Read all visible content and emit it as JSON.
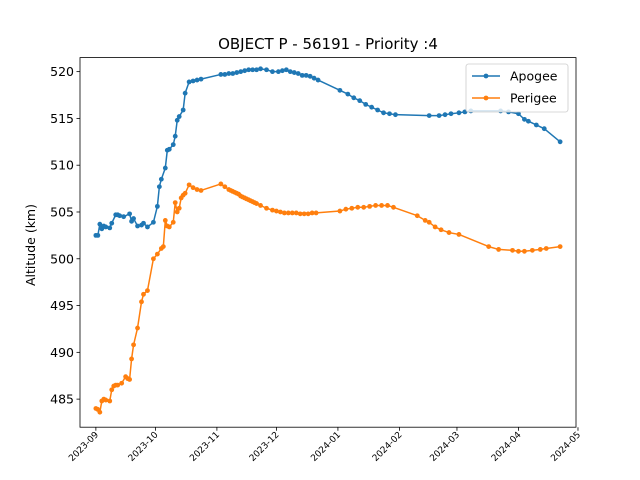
{
  "chart_data": {
    "type": "line",
    "title": "OBJECT P - 56191 - Priority :4",
    "xlabel": "",
    "ylabel": "Altitude (km)",
    "xlim": [
      "2023-08-24",
      "2024-04-30"
    ],
    "ylim": [
      482.0,
      521.5
    ],
    "x_ticks": [
      "2023-09",
      "2023-10",
      "2023-11",
      "2023-12",
      "2024-01",
      "2024-02",
      "2024-03",
      "2024-04",
      "2024-05"
    ],
    "y_ticks": [
      485,
      490,
      495,
      500,
      505,
      510,
      515,
      520
    ],
    "legend_position": "top-right",
    "grid": false,
    "series": [
      {
        "name": "Apogee",
        "color": "#1f77b4",
        "marker": "circle",
        "points": [
          [
            "2023-09-01",
            502.5
          ],
          [
            "2023-09-02",
            502.5
          ],
          [
            "2023-09-03",
            503.7
          ],
          [
            "2023-09-04",
            503.2
          ],
          [
            "2023-09-05",
            503.5
          ],
          [
            "2023-09-06",
            503.4
          ],
          [
            "2023-09-08",
            503.3
          ],
          [
            "2023-09-09",
            503.8
          ],
          [
            "2023-09-11",
            504.7
          ],
          [
            "2023-09-12",
            504.7
          ],
          [
            "2023-09-13",
            504.6
          ],
          [
            "2023-09-15",
            504.5
          ],
          [
            "2023-09-18",
            504.8
          ],
          [
            "2023-09-19",
            504.0
          ],
          [
            "2023-09-20",
            504.3
          ],
          [
            "2023-09-22",
            503.5
          ],
          [
            "2023-09-24",
            503.6
          ],
          [
            "2023-09-25",
            503.8
          ],
          [
            "2023-09-27",
            503.4
          ],
          [
            "2023-09-30",
            503.9
          ],
          [
            "2023-10-02",
            505.6
          ],
          [
            "2023-10-03",
            507.7
          ],
          [
            "2023-10-04",
            508.5
          ],
          [
            "2023-10-06",
            509.7
          ],
          [
            "2023-10-07",
            511.6
          ],
          [
            "2023-10-08",
            511.7
          ],
          [
            "2023-10-10",
            512.2
          ],
          [
            "2023-10-11",
            513.1
          ],
          [
            "2023-10-12",
            514.8
          ],
          [
            "2023-10-13",
            515.2
          ],
          [
            "2023-10-15",
            515.9
          ],
          [
            "2023-10-16",
            517.7
          ],
          [
            "2023-10-18",
            518.9
          ],
          [
            "2023-10-20",
            519.0
          ],
          [
            "2023-10-22",
            519.1
          ],
          [
            "2023-10-24",
            519.2
          ],
          [
            "2023-11-03",
            519.7
          ],
          [
            "2023-11-05",
            519.7
          ],
          [
            "2023-11-07",
            519.8
          ],
          [
            "2023-11-09",
            519.8
          ],
          [
            "2023-11-11",
            519.9
          ],
          [
            "2023-11-13",
            520.0
          ],
          [
            "2023-11-15",
            520.1
          ],
          [
            "2023-11-17",
            520.2
          ],
          [
            "2023-11-19",
            520.2
          ],
          [
            "2023-11-21",
            520.2
          ],
          [
            "2023-11-23",
            520.3
          ],
          [
            "2023-11-26",
            520.2
          ],
          [
            "2023-11-29",
            520.0
          ],
          [
            "2023-12-02",
            520.0
          ],
          [
            "2023-12-04",
            520.1
          ],
          [
            "2023-12-06",
            520.2
          ],
          [
            "2023-12-08",
            520.0
          ],
          [
            "2023-12-10",
            519.9
          ],
          [
            "2023-12-12",
            519.8
          ],
          [
            "2023-12-14",
            519.6
          ],
          [
            "2023-12-16",
            519.6
          ],
          [
            "2023-12-18",
            519.5
          ],
          [
            "2023-12-20",
            519.3
          ],
          [
            "2023-12-22",
            519.1
          ],
          [
            "2024-01-02",
            518.0
          ],
          [
            "2024-01-06",
            517.6
          ],
          [
            "2024-01-09",
            517.2
          ],
          [
            "2024-01-12",
            516.9
          ],
          [
            "2024-01-15",
            516.5
          ],
          [
            "2024-01-18",
            516.2
          ],
          [
            "2024-01-21",
            515.9
          ],
          [
            "2024-01-24",
            515.6
          ],
          [
            "2024-01-27",
            515.5
          ],
          [
            "2024-01-30",
            515.4
          ],
          [
            "2024-02-16",
            515.3
          ],
          [
            "2024-02-21",
            515.3
          ],
          [
            "2024-02-24",
            515.4
          ],
          [
            "2024-02-27",
            515.5
          ],
          [
            "2024-03-02",
            515.6
          ],
          [
            "2024-03-05",
            515.7
          ],
          [
            "2024-03-08",
            515.8
          ],
          [
            "2024-03-23",
            515.8
          ],
          [
            "2024-03-27",
            515.7
          ],
          [
            "2024-04-01",
            515.5
          ],
          [
            "2024-04-04",
            514.9
          ],
          [
            "2024-04-06",
            514.7
          ],
          [
            "2024-04-10",
            514.3
          ],
          [
            "2024-04-14",
            513.9
          ],
          [
            "2024-04-22",
            512.5
          ]
        ]
      },
      {
        "name": "Perigee",
        "color": "#ff7f0e",
        "marker": "circle",
        "points": [
          [
            "2023-09-01",
            484.0
          ],
          [
            "2023-09-02",
            483.9
          ],
          [
            "2023-09-03",
            483.6
          ],
          [
            "2023-09-04",
            484.8
          ],
          [
            "2023-09-05",
            485.0
          ],
          [
            "2023-09-06",
            484.9
          ],
          [
            "2023-09-08",
            484.8
          ],
          [
            "2023-09-09",
            486.0
          ],
          [
            "2023-09-10",
            486.4
          ],
          [
            "2023-09-11",
            486.5
          ],
          [
            "2023-09-12",
            486.5
          ],
          [
            "2023-09-14",
            486.7
          ],
          [
            "2023-09-16",
            487.4
          ],
          [
            "2023-09-17",
            487.2
          ],
          [
            "2023-09-18",
            487.1
          ],
          [
            "2023-09-19",
            489.3
          ],
          [
            "2023-09-20",
            490.8
          ],
          [
            "2023-09-22",
            492.6
          ],
          [
            "2023-09-24",
            495.4
          ],
          [
            "2023-09-25",
            496.2
          ],
          [
            "2023-09-27",
            496.6
          ],
          [
            "2023-09-30",
            500.0
          ],
          [
            "2023-10-02",
            500.5
          ],
          [
            "2023-10-04",
            501.1
          ],
          [
            "2023-10-05",
            501.3
          ],
          [
            "2023-10-06",
            504.1
          ],
          [
            "2023-10-07",
            503.5
          ],
          [
            "2023-10-08",
            503.4
          ],
          [
            "2023-10-10",
            503.9
          ],
          [
            "2023-10-11",
            506.0
          ],
          [
            "2023-10-12",
            505.0
          ],
          [
            "2023-10-13",
            505.4
          ],
          [
            "2023-10-14",
            506.5
          ],
          [
            "2023-10-15",
            506.8
          ],
          [
            "2023-10-16",
            507.0
          ],
          [
            "2023-10-18",
            507.9
          ],
          [
            "2023-10-20",
            507.6
          ],
          [
            "2023-10-22",
            507.4
          ],
          [
            "2023-10-24",
            507.3
          ],
          [
            "2023-11-03",
            508.0
          ],
          [
            "2023-11-05",
            507.7
          ],
          [
            "2023-11-07",
            507.4
          ],
          [
            "2023-11-08",
            507.3
          ],
          [
            "2023-11-09",
            507.2
          ],
          [
            "2023-11-10",
            507.1
          ],
          [
            "2023-11-11",
            507.0
          ],
          [
            "2023-11-12",
            506.9
          ],
          [
            "2023-11-13",
            506.7
          ],
          [
            "2023-11-14",
            506.6
          ],
          [
            "2023-11-15",
            506.5
          ],
          [
            "2023-11-16",
            506.4
          ],
          [
            "2023-11-17",
            506.3
          ],
          [
            "2023-11-18",
            506.2
          ],
          [
            "2023-11-19",
            506.1
          ],
          [
            "2023-11-20",
            506.0
          ],
          [
            "2023-11-21",
            505.9
          ],
          [
            "2023-11-23",
            505.7
          ],
          [
            "2023-11-26",
            505.4
          ],
          [
            "2023-11-29",
            505.2
          ],
          [
            "2023-12-01",
            505.1
          ],
          [
            "2023-12-03",
            505.0
          ],
          [
            "2023-12-05",
            504.9
          ],
          [
            "2023-12-07",
            504.9
          ],
          [
            "2023-12-09",
            504.9
          ],
          [
            "2023-12-11",
            504.9
          ],
          [
            "2023-12-13",
            504.8
          ],
          [
            "2023-12-15",
            504.8
          ],
          [
            "2023-12-17",
            504.8
          ],
          [
            "2023-12-19",
            504.9
          ],
          [
            "2023-12-21",
            504.9
          ],
          [
            "2024-01-02",
            505.1
          ],
          [
            "2024-01-05",
            505.3
          ],
          [
            "2024-01-08",
            505.4
          ],
          [
            "2024-01-11",
            505.5
          ],
          [
            "2024-01-14",
            505.5
          ],
          [
            "2024-01-17",
            505.6
          ],
          [
            "2024-01-20",
            505.7
          ],
          [
            "2024-01-23",
            505.7
          ],
          [
            "2024-01-26",
            505.7
          ],
          [
            "2024-01-29",
            505.5
          ],
          [
            "2024-02-10",
            504.6
          ],
          [
            "2024-02-14",
            504.1
          ],
          [
            "2024-02-16",
            503.9
          ],
          [
            "2024-02-19",
            503.4
          ],
          [
            "2024-02-22",
            503.1
          ],
          [
            "2024-02-26",
            502.8
          ],
          [
            "2024-03-02",
            502.6
          ],
          [
            "2024-03-17",
            501.3
          ],
          [
            "2024-03-22",
            501.0
          ],
          [
            "2024-03-29",
            500.9
          ],
          [
            "2024-04-01",
            500.8
          ],
          [
            "2024-04-04",
            500.8
          ],
          [
            "2024-04-08",
            500.9
          ],
          [
            "2024-04-12",
            501.0
          ],
          [
            "2024-04-15",
            501.1
          ],
          [
            "2024-04-22",
            501.3
          ]
        ]
      }
    ]
  }
}
